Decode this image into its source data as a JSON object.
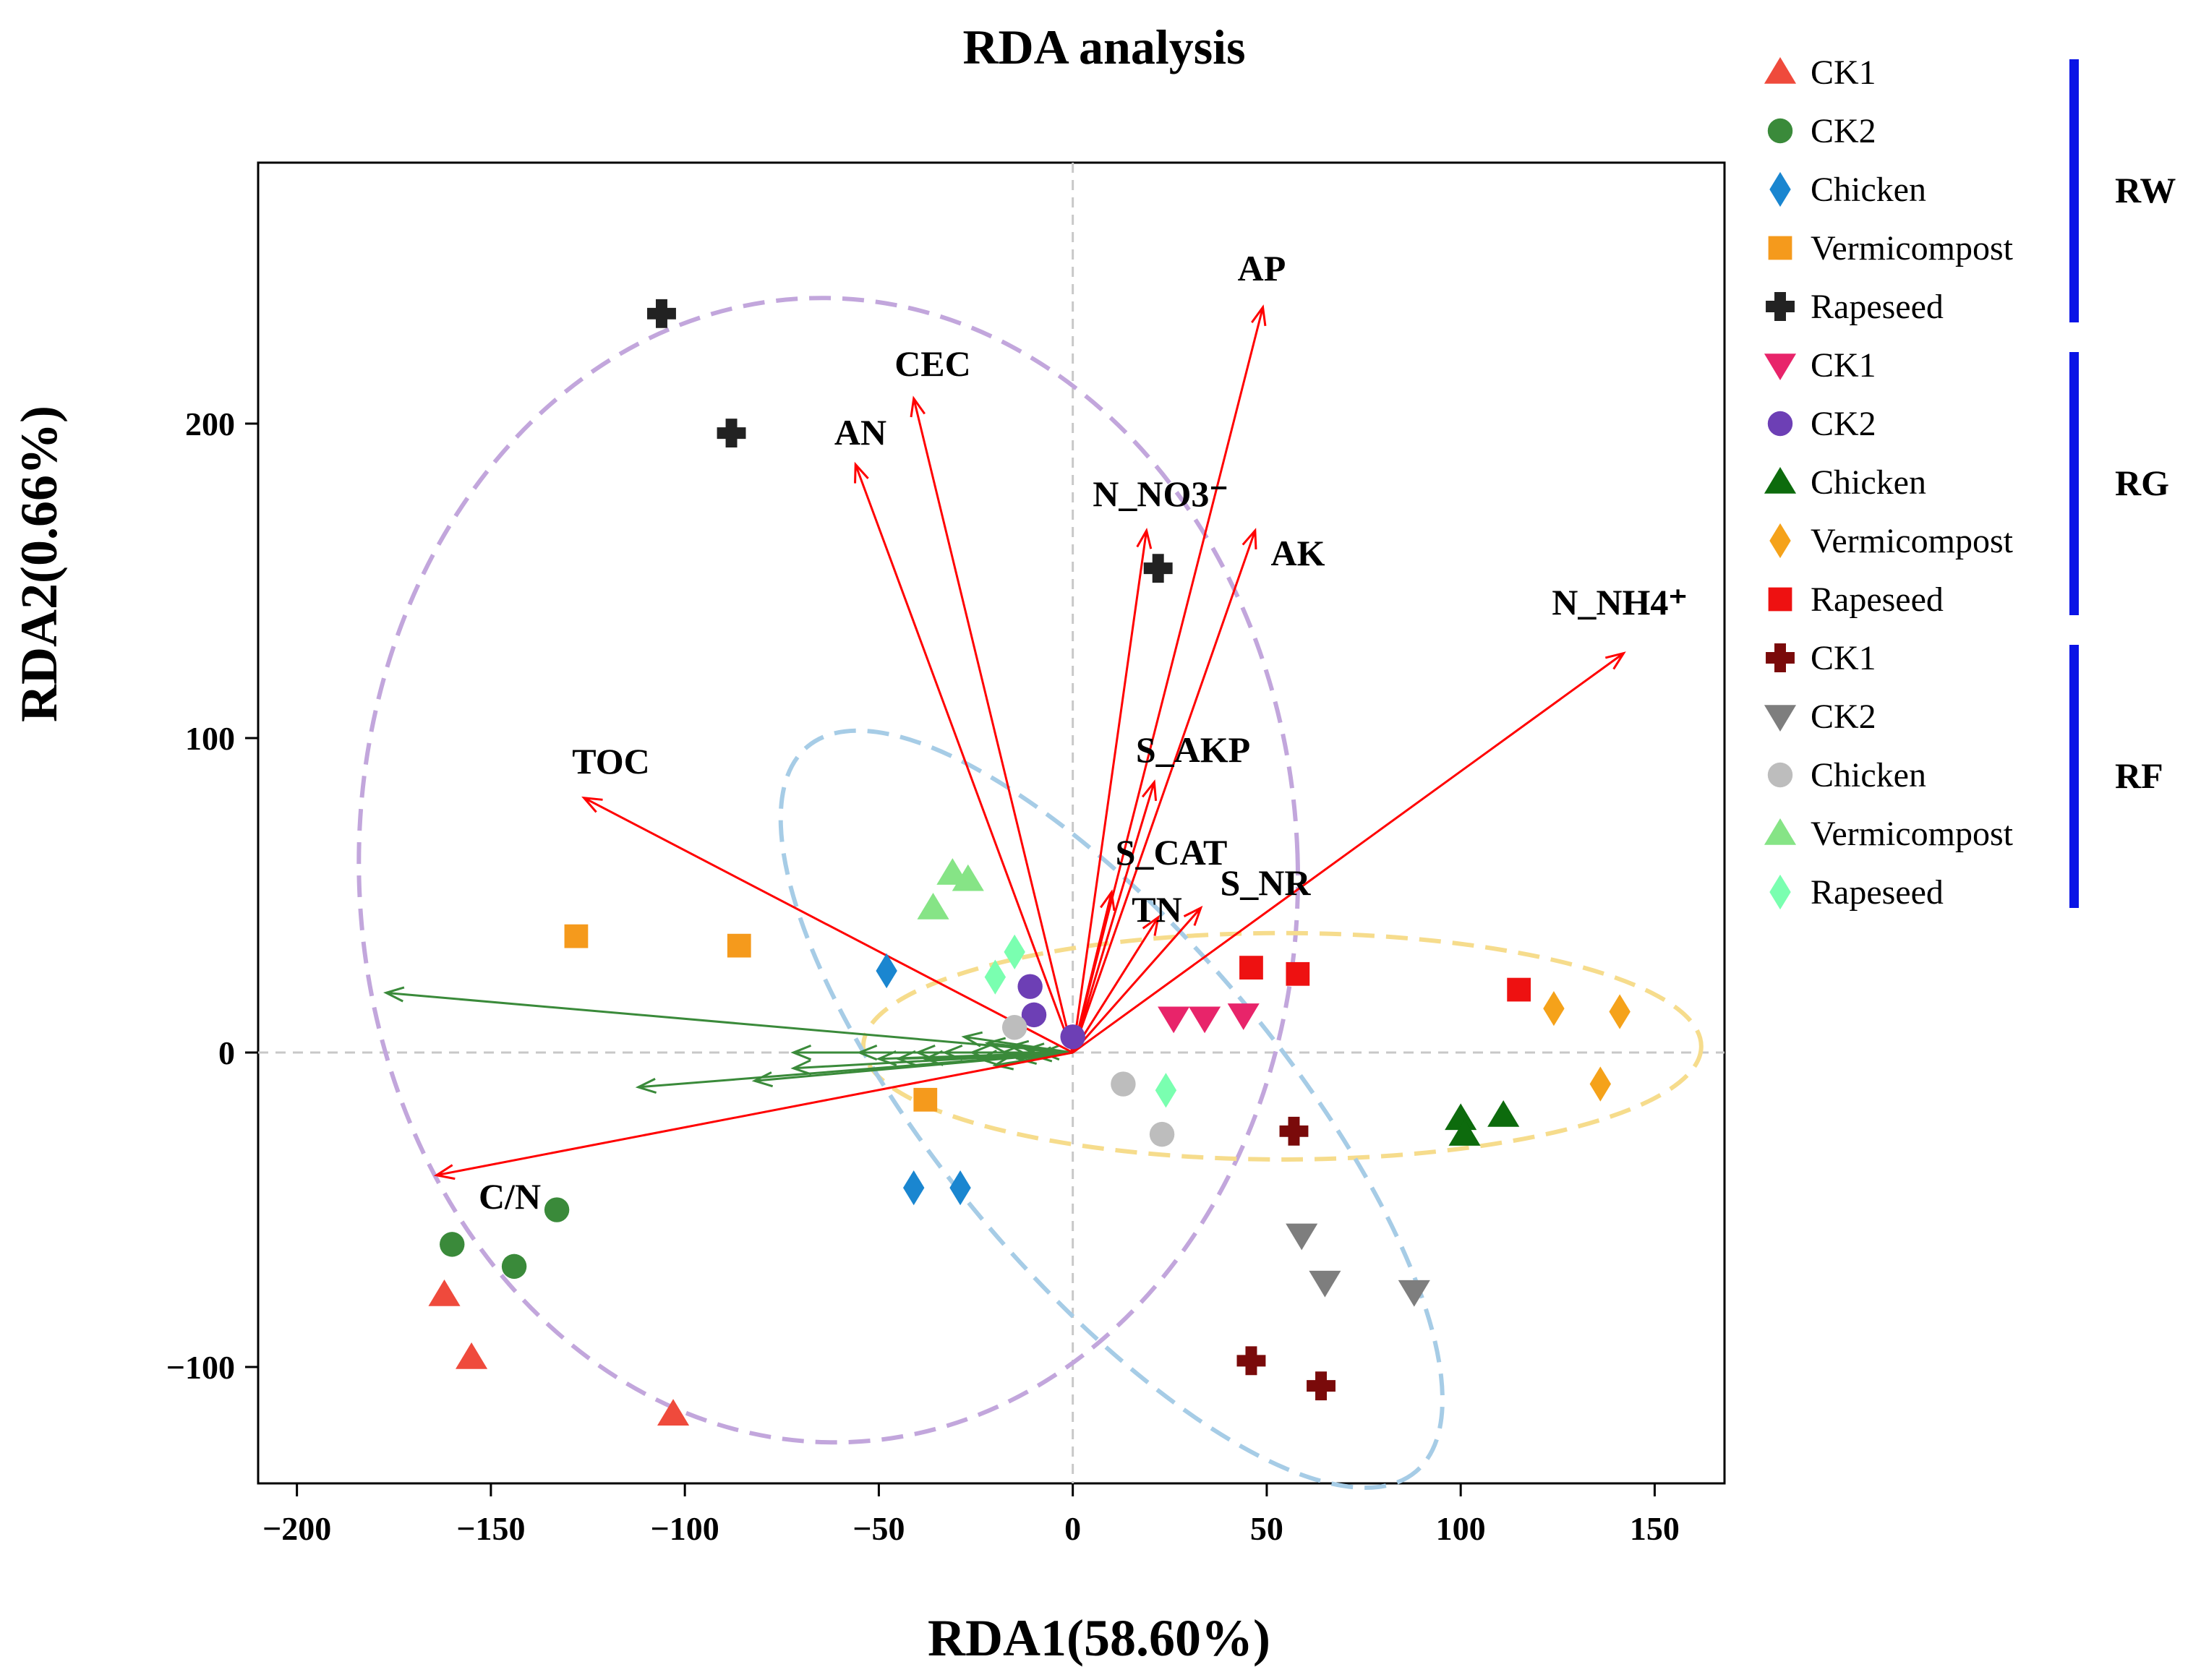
{
  "chart_data": {
    "type": "scatter",
    "title": "RDA analysis",
    "xlabel": "RDA1(58.60%)",
    "ylabel": "RDA2(0.66%)",
    "xlim": [
      -210,
      168
    ],
    "ylim": [
      -137,
      283
    ],
    "xticks": [
      -200,
      -150,
      -100,
      -50,
      0,
      50,
      100,
      150
    ],
    "yticks": [
      -100,
      0,
      100,
      200
    ],
    "xtick_labels": [
      "−200",
      "−150",
      "−100",
      "−50",
      "0",
      "50",
      "100",
      "150"
    ],
    "ytick_labels": [
      "−100",
      "0",
      "100",
      "200"
    ],
    "colors": {
      "env_arrow": "#ff0000",
      "species_arrow": "#3a8a3a",
      "group_bar": "#0a14e6",
      "ellipse_rw": "#c2a6dc",
      "ellipse_rg": "#f6dc8c",
      "ellipse_rf": "#a6cce6"
    },
    "env_vectors": [
      {
        "name": "AP",
        "x": 49,
        "y": 237
      },
      {
        "name": "CEC",
        "x": -41,
        "y": 208
      },
      {
        "name": "AN",
        "x": -56,
        "y": 187
      },
      {
        "name": "N_NO3⁻",
        "x": 19,
        "y": 166
      },
      {
        "name": "AK",
        "x": 47,
        "y": 166
      },
      {
        "name": "N_NH4⁺",
        "x": 142,
        "y": 127
      },
      {
        "name": "TOC",
        "x": -126,
        "y": 81
      },
      {
        "name": "S_AKP",
        "x": 21,
        "y": 86
      },
      {
        "name": "S_CAT",
        "x": 10,
        "y": 51
      },
      {
        "name": "S_NR",
        "x": 33,
        "y": 46
      },
      {
        "name": "TN",
        "x": 22,
        "y": 43
      },
      {
        "name": "C/N",
        "x": -164,
        "y": -39
      }
    ],
    "species_vectors": [
      {
        "x": -177,
        "y": 19
      },
      {
        "x": -112,
        "y": -11
      },
      {
        "x": -82,
        "y": -9
      },
      {
        "x": -72,
        "y": -5
      },
      {
        "x": -72,
        "y": 0
      },
      {
        "x": -55,
        "y": 0
      },
      {
        "x": -50,
        "y": -2
      },
      {
        "x": -45,
        "y": -2
      },
      {
        "x": -40,
        "y": 0
      },
      {
        "x": -38,
        "y": -2
      },
      {
        "x": -33,
        "y": 0
      },
      {
        "x": -28,
        "y": 5
      },
      {
        "x": -26,
        "y": 0
      },
      {
        "x": -24,
        "y": -2
      },
      {
        "x": -22,
        "y": 3
      },
      {
        "x": -20,
        "y": -4
      },
      {
        "x": -18,
        "y": 0
      },
      {
        "x": -16,
        "y": 2
      },
      {
        "x": -14,
        "y": -2
      },
      {
        "x": -12,
        "y": 1
      },
      {
        "x": -10,
        "y": -1
      },
      {
        "x": -8,
        "y": 0
      }
    ],
    "series": [
      {
        "name": "CK1",
        "group": "RW",
        "marker": "triangle-up",
        "color": "#ef4a3c",
        "points": [
          [
            -162,
            -77
          ],
          [
            -155,
            -97
          ],
          [
            -103,
            -115
          ]
        ]
      },
      {
        "name": "CK2",
        "group": "RW",
        "marker": "circle",
        "color": "#3a8a3a",
        "points": [
          [
            -160,
            -61
          ],
          [
            -144,
            -68
          ],
          [
            -133,
            -50
          ]
        ]
      },
      {
        "name": "Chicken",
        "group": "RW",
        "marker": "diamond",
        "color": "#1a86d0",
        "points": [
          [
            -48,
            26
          ],
          [
            -41,
            -43
          ],
          [
            -29,
            -43
          ]
        ]
      },
      {
        "name": "Vermicompost",
        "group": "RW",
        "marker": "square",
        "color": "#f59a1c",
        "points": [
          [
            -128,
            37
          ],
          [
            -86,
            34
          ],
          [
            -38,
            -15
          ]
        ]
      },
      {
        "name": "Rapeseed",
        "group": "RW",
        "marker": "plus",
        "color": "#222222",
        "points": [
          [
            -106,
            235
          ],
          [
            -88,
            197
          ],
          [
            22,
            154
          ]
        ]
      },
      {
        "name": "CK1",
        "group": "RG",
        "marker": "triangle-down",
        "color": "#e8246a",
        "points": [
          [
            26,
            11
          ],
          [
            34,
            11
          ],
          [
            44,
            12
          ]
        ]
      },
      {
        "name": "CK2",
        "group": "RG",
        "marker": "circle",
        "color": "#6d3fb5",
        "points": [
          [
            -11,
            21
          ],
          [
            -10,
            12
          ],
          [
            0,
            5
          ]
        ]
      },
      {
        "name": "Chicken",
        "group": "RG",
        "marker": "triangle-up",
        "color": "#0d6b0d",
        "points": [
          [
            100,
            -21
          ],
          [
            101,
            -26
          ],
          [
            111,
            -20
          ]
        ]
      },
      {
        "name": "Vermicompost",
        "group": "RG",
        "marker": "diamond",
        "color": "#f5a21a",
        "points": [
          [
            124,
            14
          ],
          [
            136,
            -10
          ],
          [
            141,
            13
          ]
        ]
      },
      {
        "name": "Rapeseed",
        "group": "RG",
        "marker": "square",
        "color": "#ee1111",
        "points": [
          [
            46,
            27
          ],
          [
            58,
            25
          ],
          [
            115,
            20
          ]
        ]
      },
      {
        "name": "CK1",
        "group": "RF",
        "marker": "plus",
        "color": "#7a0a0a",
        "points": [
          [
            46,
            -98
          ],
          [
            57,
            -25
          ],
          [
            64,
            -106
          ]
        ]
      },
      {
        "name": "CK2",
        "group": "RF",
        "marker": "triangle-down",
        "color": "#7e7e7e",
        "points": [
          [
            59,
            -58
          ],
          [
            65,
            -73
          ],
          [
            88,
            -76
          ]
        ]
      },
      {
        "name": "Chicken",
        "group": "RF",
        "marker": "circle",
        "color": "#bdbdbd",
        "points": [
          [
            -15,
            8
          ],
          [
            13,
            -10
          ],
          [
            23,
            -26
          ]
        ]
      },
      {
        "name": "Vermicompost",
        "group": "RF",
        "marker": "triangle-up",
        "color": "#86e486",
        "points": [
          [
            -36,
            46
          ],
          [
            -31,
            57
          ],
          [
            -27,
            55
          ]
        ]
      },
      {
        "name": "Rapeseed",
        "group": "RF",
        "marker": "diamond",
        "color": "#7affb0",
        "points": [
          [
            -20,
            24
          ],
          [
            -15,
            32
          ],
          [
            24,
            -12
          ]
        ]
      }
    ],
    "ellipses": [
      {
        "group": "RW",
        "center": [
          -63,
          58
        ],
        "semi_axes": [
          121,
          182
        ],
        "angle_deg": 2
      },
      {
        "group": "RG",
        "center": [
          54,
          2
        ],
        "semi_axes": [
          108,
          36
        ],
        "angle_deg": 0
      },
      {
        "group": "RF",
        "center": [
          10,
          -18
        ],
        "semi_axes": [
          122,
          54
        ],
        "angle_deg": -50
      }
    ],
    "legend": {
      "position": "right",
      "groups": [
        {
          "label": "RW",
          "items": [
            "CK1",
            "CK2",
            "Chicken",
            "Vermicompost",
            "Rapeseed"
          ]
        },
        {
          "label": "RG",
          "items": [
            "CK1",
            "CK2",
            "Chicken",
            "Vermicompost",
            "Rapeseed"
          ]
        },
        {
          "label": "RF",
          "items": [
            "CK1",
            "CK2",
            "Chicken",
            "Vermicompost",
            "Rapeseed"
          ]
        }
      ]
    }
  }
}
